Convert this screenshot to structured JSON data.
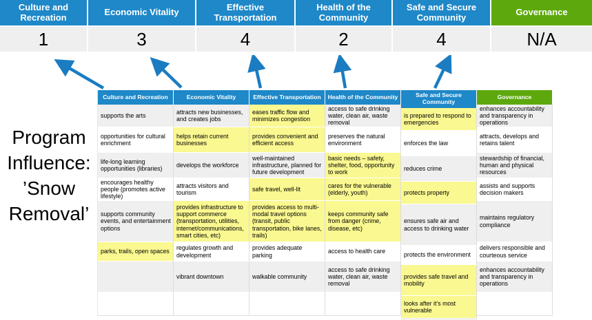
{
  "colors": {
    "header_blue": "#1E88C8",
    "header_green": "#5DA80D",
    "highlight_yellow": "#FAF890",
    "row_band_gray": "#EFEFEF",
    "arrow_blue": "#1B7CC2"
  },
  "title": "Program Influence: ’Snow Removal’",
  "scoreboard": {
    "items": [
      {
        "id": "culture-and-recreation",
        "label": "Culture and Recreation",
        "score": "1",
        "type": "blue"
      },
      {
        "id": "economic-vitality",
        "label": "Economic Vitality",
        "score": "3",
        "type": "blue"
      },
      {
        "id": "effective-transportation",
        "label": "Effective Transportation",
        "score": "4",
        "type": "blue"
      },
      {
        "id": "health-of-the-community",
        "label": "Health of the Community",
        "score": "2",
        "type": "blue"
      },
      {
        "id": "safe-and-secure-community",
        "label": "Safe and Secure Community",
        "score": "4",
        "type": "blue"
      },
      {
        "id": "governance",
        "label": "Governance",
        "score": "N/A",
        "type": "green"
      }
    ]
  },
  "matrix": {
    "columns": [
      {
        "id": "culture-and-recreation",
        "header": "Culture and Recreation",
        "type": "blue",
        "cells": [
          {
            "text": "supports the arts",
            "highlight": false
          },
          {
            "text": "opportunities for cultural enrichment",
            "highlight": false
          },
          {
            "text": "life-long learning opportunities (libraries)",
            "highlight": false
          },
          {
            "text": "encourages healthy people (promotes active lifestyle)",
            "highlight": false
          },
          {
            "text": "supports community events, and entertainment options",
            "highlight": false
          },
          {
            "text": "parks, trails, open spaces",
            "highlight": true
          },
          {
            "text": "",
            "highlight": false
          },
          {
            "text": "",
            "highlight": false
          }
        ]
      },
      {
        "id": "economic-vitality",
        "header": "Economic Vitality",
        "type": "blue",
        "cells": [
          {
            "text": "attracts new businesses, and creates jobs",
            "highlight": false
          },
          {
            "text": "helps retain current businesses",
            "highlight": true
          },
          {
            "text": "develops the workforce",
            "highlight": false
          },
          {
            "text": "attracts visitors and tourism",
            "highlight": false
          },
          {
            "text": "provides infrastructure to support commerce (transportation, utilities, internet/communications, smart cities, etc)",
            "highlight": true
          },
          {
            "text": "regulates growth and development",
            "highlight": false
          },
          {
            "text": "vibrant downtown",
            "highlight": false
          },
          {
            "text": "",
            "highlight": false
          }
        ]
      },
      {
        "id": "effective-transportation",
        "header": "Effective Transportation",
        "type": "blue",
        "cells": [
          {
            "text": "eases traffic flow and minimizes congestion",
            "highlight": true
          },
          {
            "text": "provides convenient and efficient access",
            "highlight": true
          },
          {
            "text": "well-maintained infrastructure, planned for future development",
            "highlight": false
          },
          {
            "text": "safe travel, well-lit",
            "highlight": true
          },
          {
            "text": "provides access to multi-modal travel options (transit, public transportation, bike lanes, trails)",
            "highlight": true
          },
          {
            "text": "provides adequate parking",
            "highlight": false
          },
          {
            "text": "walkable community",
            "highlight": false
          },
          {
            "text": "",
            "highlight": false
          }
        ]
      },
      {
        "id": "health-of-the-community",
        "header": "Health of the Community",
        "type": "blue",
        "cells": [
          {
            "text": "access to safe drinking water, clean air, waste removal",
            "highlight": false
          },
          {
            "text": "preserves the natural environment",
            "highlight": false
          },
          {
            "text": "basic needs – safety, shelter, food, opportunity to work",
            "highlight": true
          },
          {
            "text": "cares for the vulnerable (elderly, youth)",
            "highlight": true
          },
          {
            "text": "keeps community safe from danger (crime, disease, etc)",
            "highlight": true
          },
          {
            "text": "access to health care",
            "highlight": false
          },
          {
            "text": "access to safe drinking water, clean air, waste removal",
            "highlight": false
          },
          {
            "text": "",
            "highlight": false
          }
        ]
      },
      {
        "id": "safe-and-secure-community",
        "header": "Safe and Secure Community",
        "type": "blue",
        "cells": [
          {
            "text": "is prepared to respond to emergencies",
            "highlight": true
          },
          {
            "text": "enforces the law",
            "highlight": false
          },
          {
            "text": "reduces crime",
            "highlight": false
          },
          {
            "text": "protects property",
            "highlight": true
          },
          {
            "text": "ensures safe air and access to drinking water",
            "highlight": false
          },
          {
            "text": "protects the environment",
            "highlight": false
          },
          {
            "text": "provides safe travel and mobility",
            "highlight": true
          },
          {
            "text": "looks after it’s most vulnerable",
            "highlight": true
          }
        ]
      },
      {
        "id": "governance",
        "header": "Governance",
        "type": "green",
        "cells": [
          {
            "text": "enhances accountability and transparency in operations",
            "highlight": false
          },
          {
            "text": "attracts, develops and retains talent",
            "highlight": false
          },
          {
            "text": "stewardship of financial, human and physical resources",
            "highlight": false
          },
          {
            "text": "assists and supports decision makers",
            "highlight": false
          },
          {
            "text": "maintains regulatory compliance",
            "highlight": false
          },
          {
            "text": "delivers responsible and courteous service",
            "highlight": false
          },
          {
            "text": "enhances accountability and transparency in operations",
            "highlight": false
          },
          {
            "text": "",
            "highlight": false
          }
        ]
      }
    ]
  }
}
